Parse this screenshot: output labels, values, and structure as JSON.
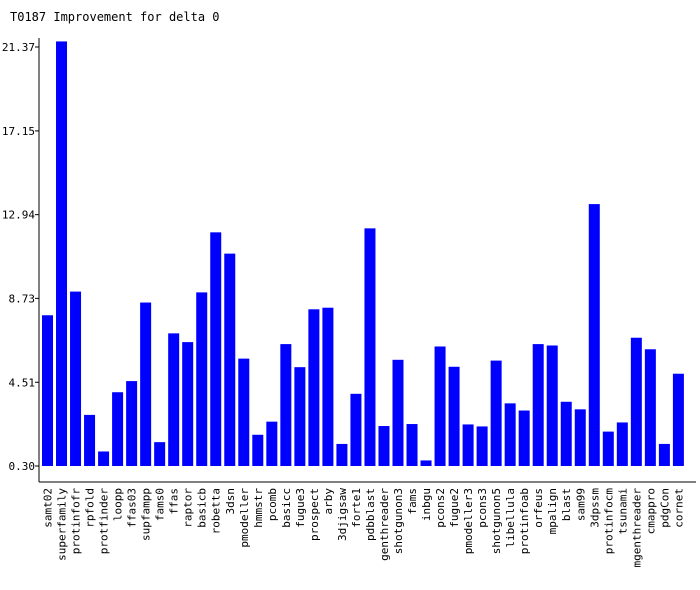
{
  "chart_data": {
    "type": "bar",
    "title": "T0187 Improvement for delta 0",
    "xlabel": "",
    "ylabel": "",
    "ylim": [
      0.3,
      21.37
    ],
    "yticks": [
      "0.30",
      "4.51",
      "8.73",
      "12.94",
      "17.15",
      "21.37"
    ],
    "grid": false,
    "legend": "none",
    "bar_color": "#0000ff",
    "categories": [
      "samt02",
      "superfamily",
      "protinfofr",
      "rpfold",
      "protfinder",
      "loopp",
      "ffas03",
      "supfampp",
      "fams0",
      "ffas",
      "raptor",
      "basicb",
      "robetta",
      "3dsn",
      "pmodeller",
      "hmmstr",
      "pcomb",
      "basicc",
      "fugue3",
      "prospect",
      "arby",
      "3djigsaw",
      "forte1",
      "pdbblast",
      "genthreader",
      "shotgunon3",
      "fams",
      "inbgu",
      "pcons2",
      "fugue2",
      "pmodeller3",
      "pcons3",
      "shotgunon5",
      "libellula",
      "protinfoab",
      "orfeus",
      "mpalign",
      "blast",
      "sam99",
      "3dpssm",
      "protinfocm",
      "tsunami",
      "mgenthreader",
      "cmappro",
      "pdgCon",
      "cornet"
    ],
    "values": [
      7.88,
      21.65,
      9.07,
      2.87,
      1.03,
      4.01,
      4.57,
      8.52,
      1.5,
      6.97,
      6.53,
      9.03,
      12.05,
      10.98,
      5.7,
      1.87,
      2.53,
      6.43,
      5.27,
      8.18,
      8.26,
      1.41,
      3.93,
      12.25,
      2.31,
      5.64,
      2.41,
      0.58,
      6.31,
      5.29,
      2.39,
      2.29,
      5.6,
      3.45,
      3.09,
      6.43,
      6.36,
      3.53,
      3.15,
      13.47,
      2.03,
      2.49,
      6.75,
      6.17,
      1.41,
      4.94
    ]
  }
}
